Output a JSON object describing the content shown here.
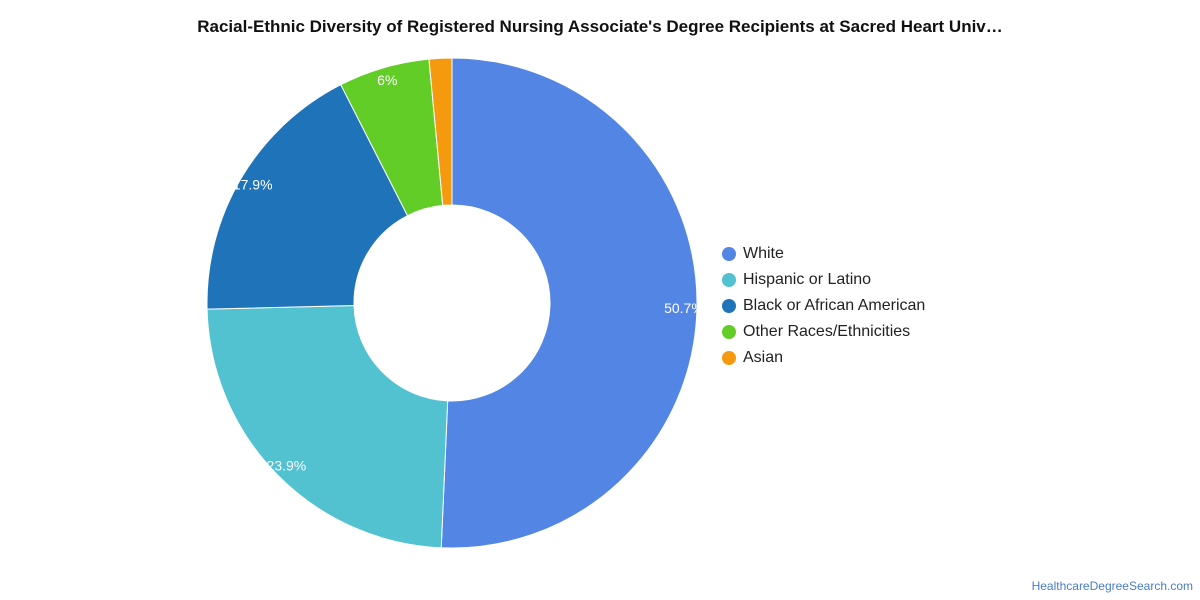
{
  "chart_data": {
    "type": "pie",
    "title": "Racial-Ethnic Diversity of Registered Nursing Associate's Degree Recipients at Sacred Heart Univ…",
    "donut": true,
    "legend_position": "right",
    "slices": [
      {
        "name": "White",
        "value": 50.7,
        "label": "50.7%",
        "color": "#5285e4"
      },
      {
        "name": "Hispanic or Latino",
        "value": 23.9,
        "label": "23.9%",
        "color": "#52c1d0"
      },
      {
        "name": "Black or African American",
        "value": 17.9,
        "label": "17.9%",
        "color": "#1f73b9"
      },
      {
        "name": "Other Races/Ethnicities",
        "value": 6.0,
        "label": "6%",
        "color": "#62cd26"
      },
      {
        "name": "Asian",
        "value": 1.5,
        "label": "",
        "color": "#f59a0e"
      }
    ]
  },
  "source": "HealthcareDegreeSearch.com"
}
